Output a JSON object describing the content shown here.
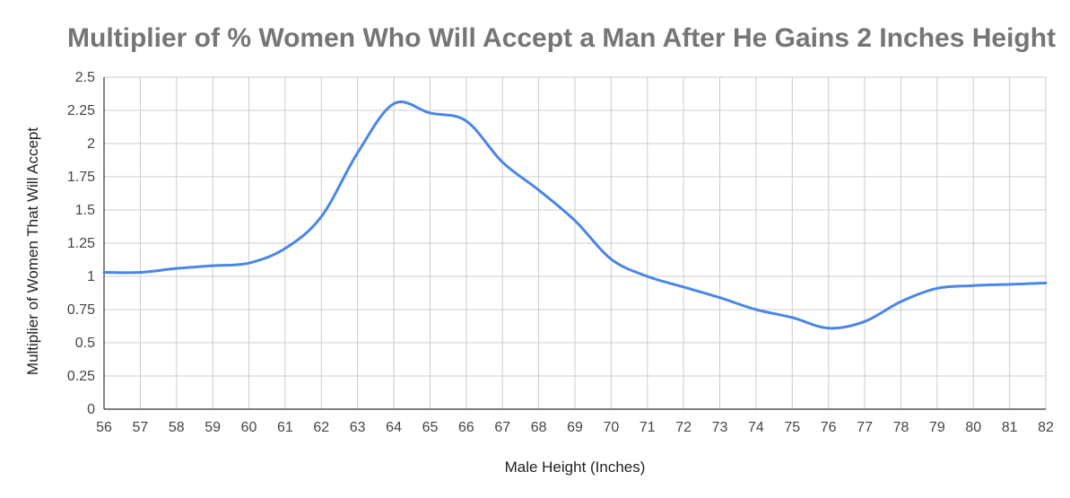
{
  "chart_data": {
    "type": "line",
    "title": "Multiplier of % Women Who Will Accept a Man After He Gains 2 Inches Height",
    "xlabel": "Male Height (Inches)",
    "ylabel": "Multiplier of Women That Will Accept",
    "x": [
      56,
      57,
      58,
      59,
      60,
      61,
      62,
      63,
      64,
      65,
      66,
      67,
      68,
      69,
      70,
      71,
      72,
      73,
      74,
      75,
      76,
      77,
      78,
      79,
      80,
      81,
      82
    ],
    "x_tick_labels": [
      "56",
      "57",
      "58",
      "59",
      "60",
      "61",
      "62",
      "63",
      "64",
      "65",
      "66",
      "67",
      "68",
      "69",
      "70",
      "71",
      "72",
      "73",
      "74",
      "75",
      "76",
      "77",
      "78",
      "79",
      "80",
      "81",
      "82"
    ],
    "y_tick_values": [
      0,
      0.25,
      0.5,
      0.75,
      1,
      1.25,
      1.5,
      1.75,
      2,
      2.25,
      2.5
    ],
    "y_tick_labels": [
      "0",
      "0.25",
      "0.5",
      "0.75",
      "1",
      "1.25",
      "1.5",
      "1.75",
      "2",
      "2.25",
      "2.5"
    ],
    "xlim": [
      56,
      82
    ],
    "ylim": [
      0,
      2.5
    ],
    "grid": true,
    "series": [
      {
        "color": "#4a86e8",
        "values": [
          1.03,
          1.03,
          1.06,
          1.08,
          1.1,
          1.21,
          1.45,
          1.93,
          2.3,
          2.23,
          2.17,
          1.86,
          1.65,
          1.42,
          1.13,
          1.0,
          0.92,
          0.84,
          0.75,
          0.69,
          0.61,
          0.66,
          0.81,
          0.91,
          0.93,
          0.94,
          0.95
        ]
      }
    ]
  }
}
